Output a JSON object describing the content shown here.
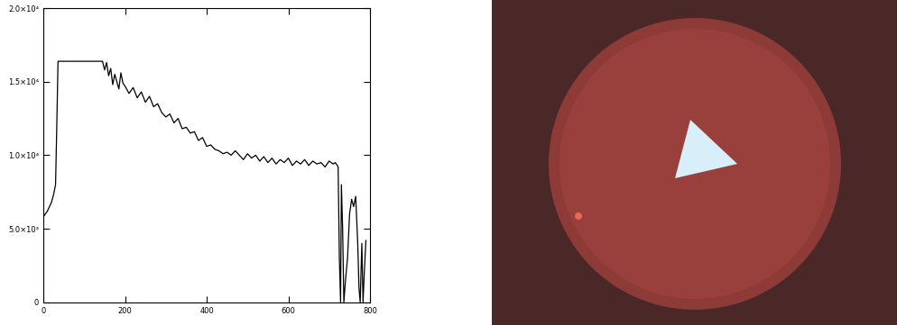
{
  "chart_data": {
    "type": "line",
    "color": "#000000",
    "x": [
      0,
      5,
      10,
      15,
      20,
      25,
      30,
      33,
      36,
      40,
      60,
      80,
      100,
      120,
      140,
      145,
      150,
      155,
      160,
      165,
      170,
      175,
      180,
      185,
      190,
      195,
      200,
      210,
      220,
      230,
      240,
      250,
      260,
      270,
      280,
      290,
      300,
      310,
      320,
      330,
      340,
      350,
      360,
      370,
      380,
      390,
      400,
      410,
      420,
      430,
      440,
      450,
      460,
      470,
      480,
      490,
      500,
      510,
      520,
      530,
      540,
      550,
      560,
      570,
      580,
      590,
      600,
      610,
      620,
      630,
      640,
      650,
      660,
      670,
      680,
      690,
      700,
      710,
      715,
      720,
      722,
      725,
      728,
      730,
      733,
      736,
      740,
      745,
      750,
      755,
      760,
      765,
      770,
      773,
      776,
      780,
      783,
      786,
      790
    ],
    "values": [
      5800,
      6000,
      6200,
      6500,
      6800,
      7300,
      8000,
      12000,
      16384,
      16384,
      16384,
      16384,
      16384,
      16384,
      16384,
      16384,
      15800,
      16300,
      15400,
      15900,
      14800,
      15500,
      15000,
      14500,
      15600,
      14900,
      14700,
      14200,
      14600,
      13900,
      14300,
      13600,
      14000,
      13300,
      13500,
      12900,
      12600,
      12800,
      12200,
      12500,
      11800,
      11900,
      11500,
      11600,
      11000,
      11200,
      10600,
      10700,
      10400,
      10300,
      10100,
      10200,
      10000,
      10300,
      10000,
      9700,
      10100,
      9800,
      10000,
      9600,
      9900,
      9500,
      9800,
      9400,
      9700,
      9500,
      9800,
      9300,
      9600,
      9400,
      9700,
      9300,
      9600,
      9400,
      9500,
      9200,
      9600,
      9400,
      9500,
      9300,
      9200,
      3000,
      0,
      8000,
      5000,
      0,
      1500,
      3000,
      6000,
      7000,
      6500,
      7200,
      4000,
      1000,
      0,
      4000,
      0,
      2000,
      4200
    ],
    "xlim": [
      0,
      800
    ],
    "xticks": [
      0,
      200,
      400,
      600,
      800
    ],
    "ylim": [
      0,
      20000
    ],
    "yticks": [
      0,
      {
        "value": 5000,
        "label": "5.0×10³"
      },
      {
        "value": 10000,
        "label": "1.0×10⁴"
      },
      {
        "value": 15000,
        "label": "1.5×10⁴"
      },
      {
        "value": 20000,
        "label": "2.0×10⁴"
      }
    ],
    "grid": false
  }
}
